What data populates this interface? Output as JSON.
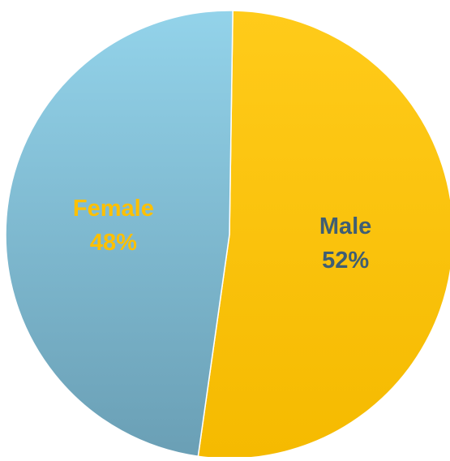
{
  "chart_data": {
    "type": "pie",
    "categories": [
      "Male",
      "Female"
    ],
    "values": [
      52,
      48
    ],
    "unit": "%",
    "colors": [
      "#FFC400",
      "#7DBCD6"
    ],
    "label_colors": [
      "#3F5E73",
      "#FFC000"
    ],
    "slice_labels": [
      {
        "category": "Male",
        "percent": "52%"
      },
      {
        "category": "Female",
        "percent": "48%"
      }
    ],
    "start_angle": "12 o'clock",
    "direction": "clockwise",
    "legend": "none"
  }
}
